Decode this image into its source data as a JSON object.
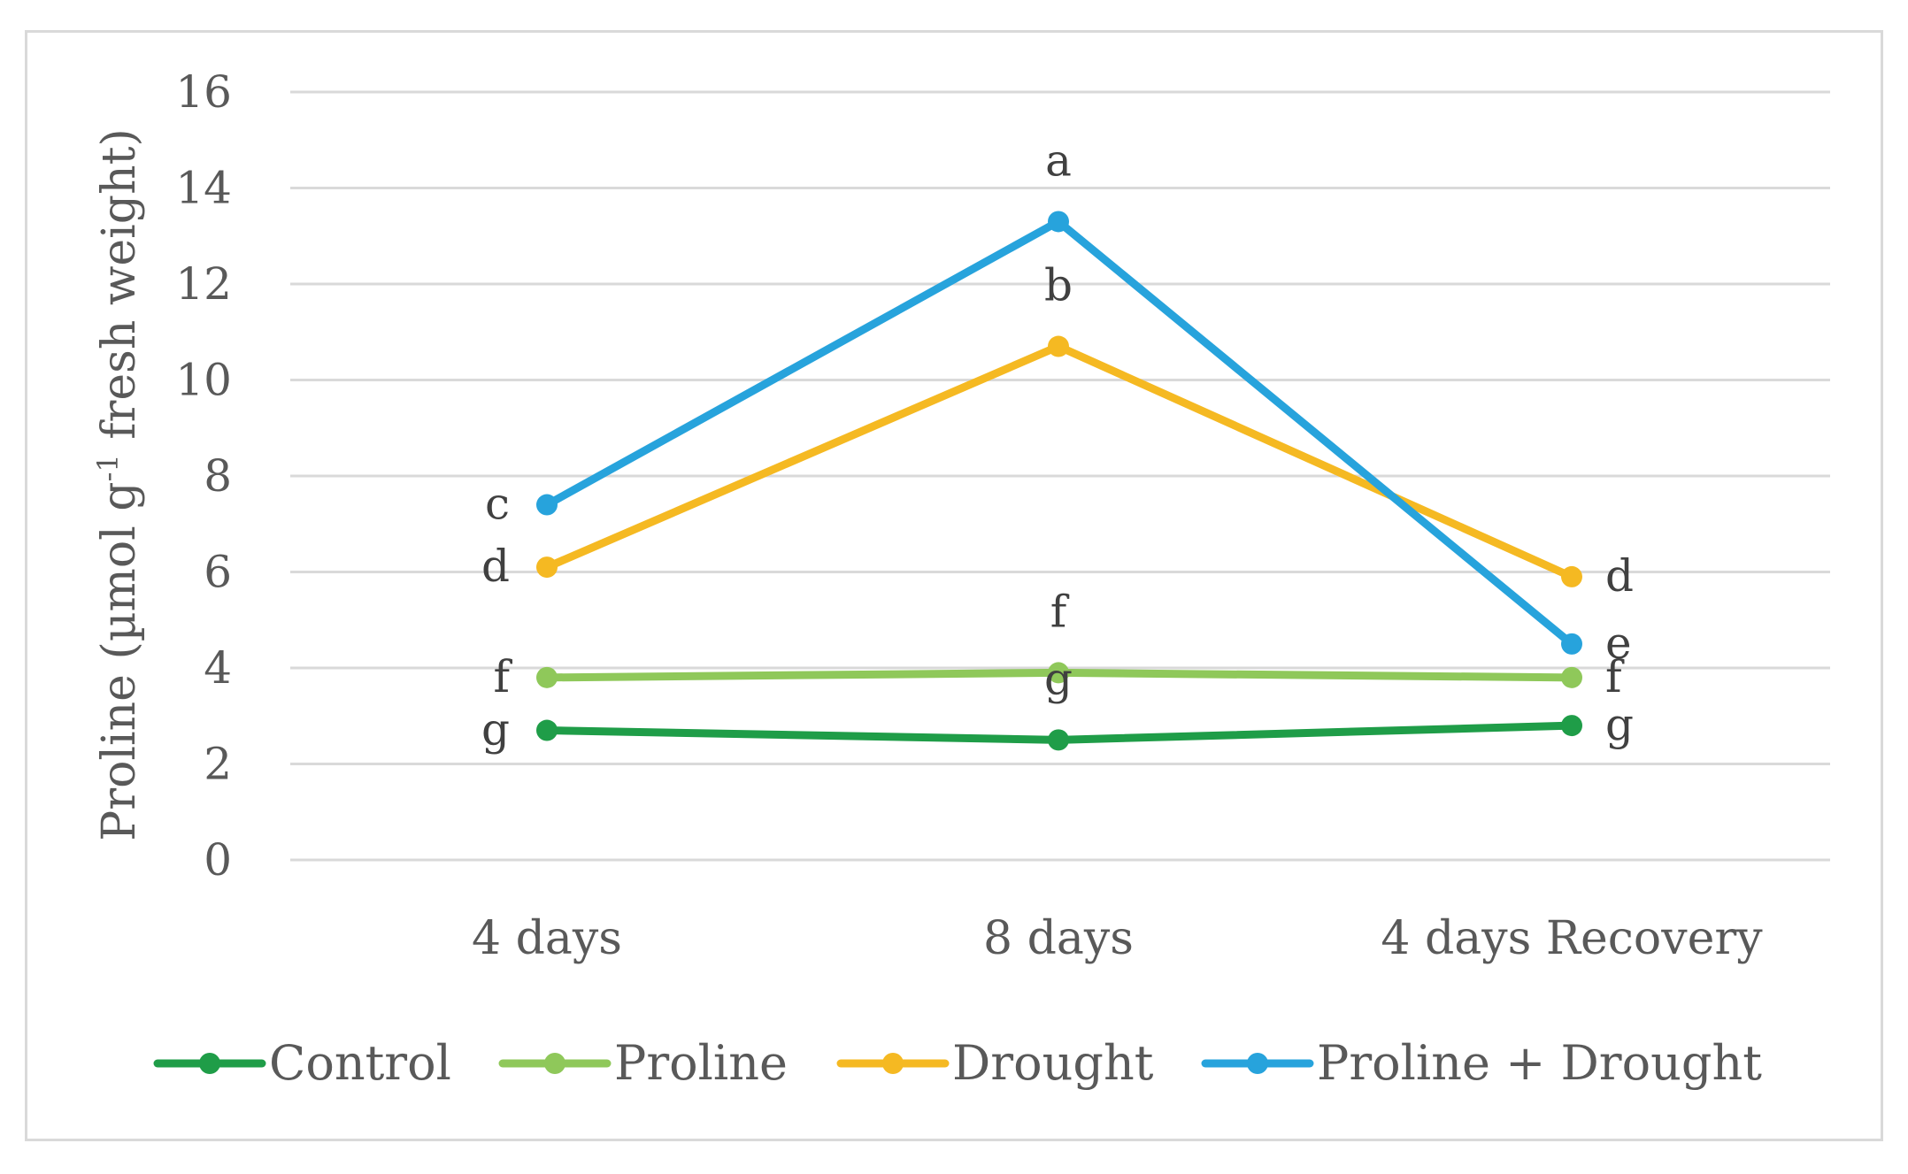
{
  "chart_data": {
    "type": "line",
    "title": "",
    "ylabel": "Proline (µmol g",
    "ylabel_sup": "-1",
    "ylabel_tail": " fresh weight)",
    "xlabel": "",
    "ylim": [
      0,
      16
    ],
    "yticks": [
      0,
      2,
      4,
      6,
      8,
      10,
      12,
      14,
      16
    ],
    "grid": true,
    "legend_position": "bottom",
    "categories": [
      "4 days",
      "8 days",
      "4 days Recovery"
    ],
    "series": [
      {
        "name": "Control",
        "color": "#1f9d48",
        "values": [
          2.7,
          2.5,
          2.8
        ],
        "labels": [
          "g",
          "g",
          "g"
        ]
      },
      {
        "name": "Proline",
        "color": "#8fc85a",
        "values": [
          3.8,
          3.9,
          3.8
        ],
        "labels": [
          "f",
          "f",
          "f"
        ]
      },
      {
        "name": "Drought",
        "color": "#f5b922",
        "values": [
          6.1,
          10.7,
          5.9
        ],
        "labels": [
          "d",
          "b",
          "d"
        ]
      },
      {
        "name": "Proline + Drought",
        "color": "#27a3dc",
        "values": [
          7.4,
          13.3,
          4.5
        ],
        "labels": [
          "c",
          "a",
          "e"
        ]
      }
    ]
  }
}
